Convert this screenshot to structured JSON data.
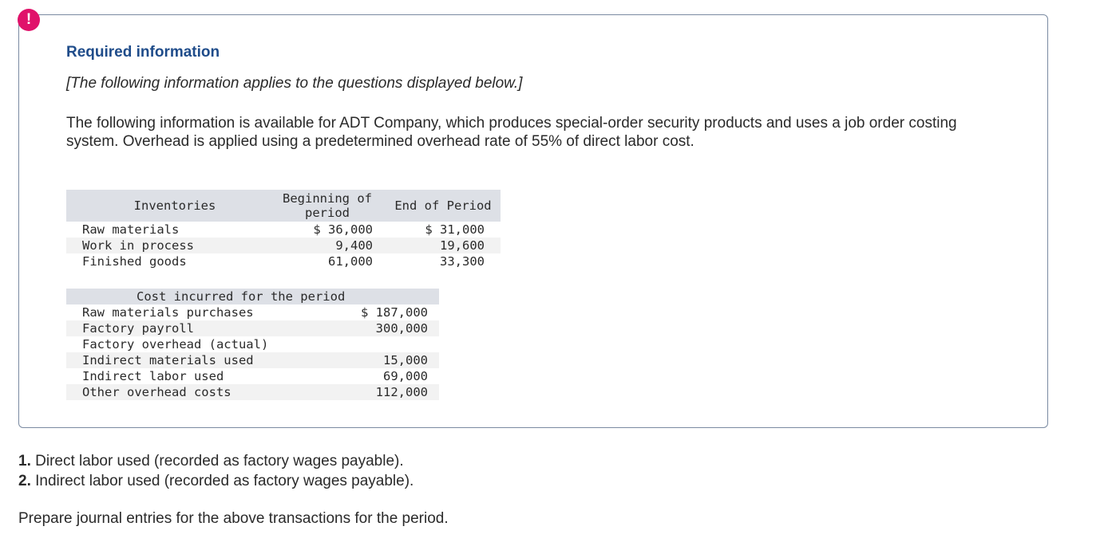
{
  "alert": {
    "icon": "exclamation-icon",
    "symbol": "!",
    "color": "#e0126a"
  },
  "info": {
    "title": "Required information",
    "subtitle": "[The following information applies to the questions displayed below.]",
    "intro": "The following information is available for ADT Company, which produces special-order security products and uses a job order costing system. Overhead is applied using a predetermined overhead rate of 55% of direct labor cost."
  },
  "inventory_table": {
    "headers": [
      "Inventories",
      "Beginning of period",
      "End of Period"
    ],
    "rows": [
      {
        "label": "Raw materials",
        "beginning": "$ 36,000",
        "end": "$ 31,000"
      },
      {
        "label": "Work in process",
        "beginning": "9,400",
        "end": "19,600"
      },
      {
        "label": "Finished goods",
        "beginning": "61,000",
        "end": "33,300"
      }
    ]
  },
  "cost_table": {
    "header": "Cost incurred for the period",
    "rows": [
      {
        "label": "Raw materials purchases",
        "value": "$ 187,000"
      },
      {
        "label": "Factory payroll",
        "value": "300,000"
      },
      {
        "label": "Factory overhead (actual)",
        "value": ""
      },
      {
        "label": "Indirect materials used",
        "value": "15,000"
      },
      {
        "label": "Indirect labor used",
        "value": "69,000"
      },
      {
        "label": "Other overhead costs",
        "value": "112,000"
      }
    ]
  },
  "questions": [
    {
      "number": "1.",
      "text": " Direct labor used (recorded as factory wages payable)."
    },
    {
      "number": "2.",
      "text": " Indirect labor used (recorded as factory wages payable)."
    }
  ],
  "instruction": "Prepare journal entries for the above transactions for the period.",
  "colors": {
    "title": "#1f4c8a",
    "header_bg": "#dde0e6",
    "border": "#7a8aa1"
  }
}
